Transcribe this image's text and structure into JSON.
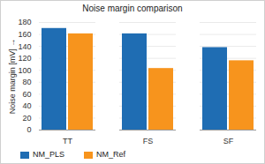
{
  "chart_data": {
    "type": "bar",
    "title": "Noise margin comparison",
    "y_label": "Noise margin [mV]",
    "categories": [
      "TT",
      "FS",
      "SF"
    ],
    "series": [
      {
        "name": "NM_PLS",
        "color": "#1f6db3",
        "values": [
          170,
          161,
          138
        ]
      },
      {
        "name": "NM_Ref",
        "color": "#f7941d",
        "values": [
          161,
          103,
          116
        ]
      }
    ],
    "ylim": [
      0,
      180
    ],
    "yticks": [
      0,
      20,
      40,
      60,
      80,
      100,
      120,
      140,
      160,
      180
    ],
    "grid": true,
    "legend": "bottom"
  }
}
